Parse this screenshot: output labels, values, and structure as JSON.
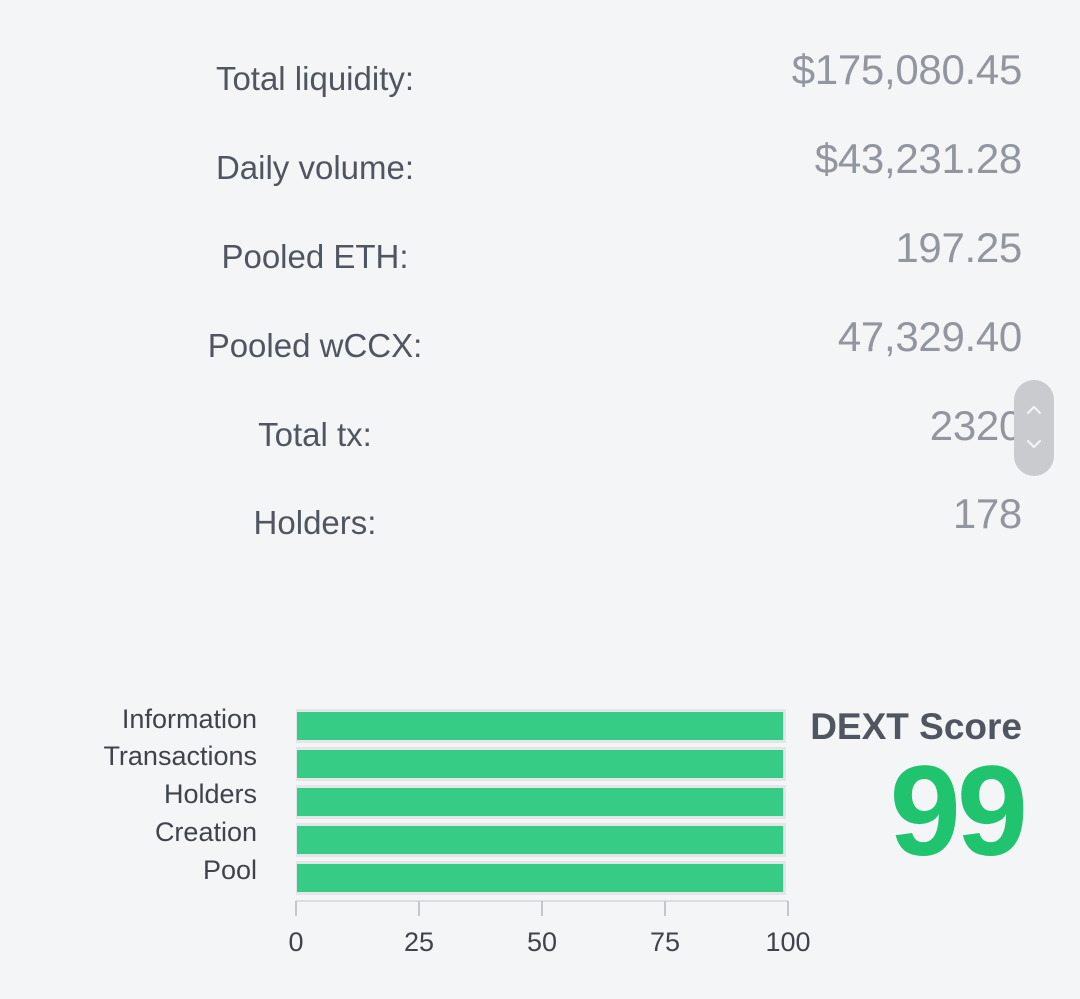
{
  "stats": [
    {
      "label": "Total liquidity:",
      "value": "$175,080.45"
    },
    {
      "label": "Daily volume:",
      "value": "$43,231.28"
    },
    {
      "label": "Pooled ETH:",
      "value": "197.25"
    },
    {
      "label": "Pooled wCCX:",
      "value": "47,329.40"
    },
    {
      "label": "Total tx:",
      "value": "2320"
    },
    {
      "label": "Holders:",
      "value": "178"
    }
  ],
  "score": {
    "title": "DEXT Score",
    "value": "99",
    "color": "#20c46f"
  },
  "chart_data": {
    "type": "bar",
    "orientation": "horizontal",
    "categories": [
      "Information",
      "Transactions",
      "Holders",
      "Creation",
      "Pool"
    ],
    "values": [
      99,
      99,
      99,
      99,
      99
    ],
    "xlim": [
      0,
      100
    ],
    "xticks": [
      "0",
      "25",
      "50",
      "75",
      "100"
    ],
    "bar_color": "#36cc85",
    "track_color": "#e3e5e8"
  },
  "icons": {
    "scroll_up": "chevron-up-icon",
    "scroll_down": "chevron-down-icon"
  }
}
